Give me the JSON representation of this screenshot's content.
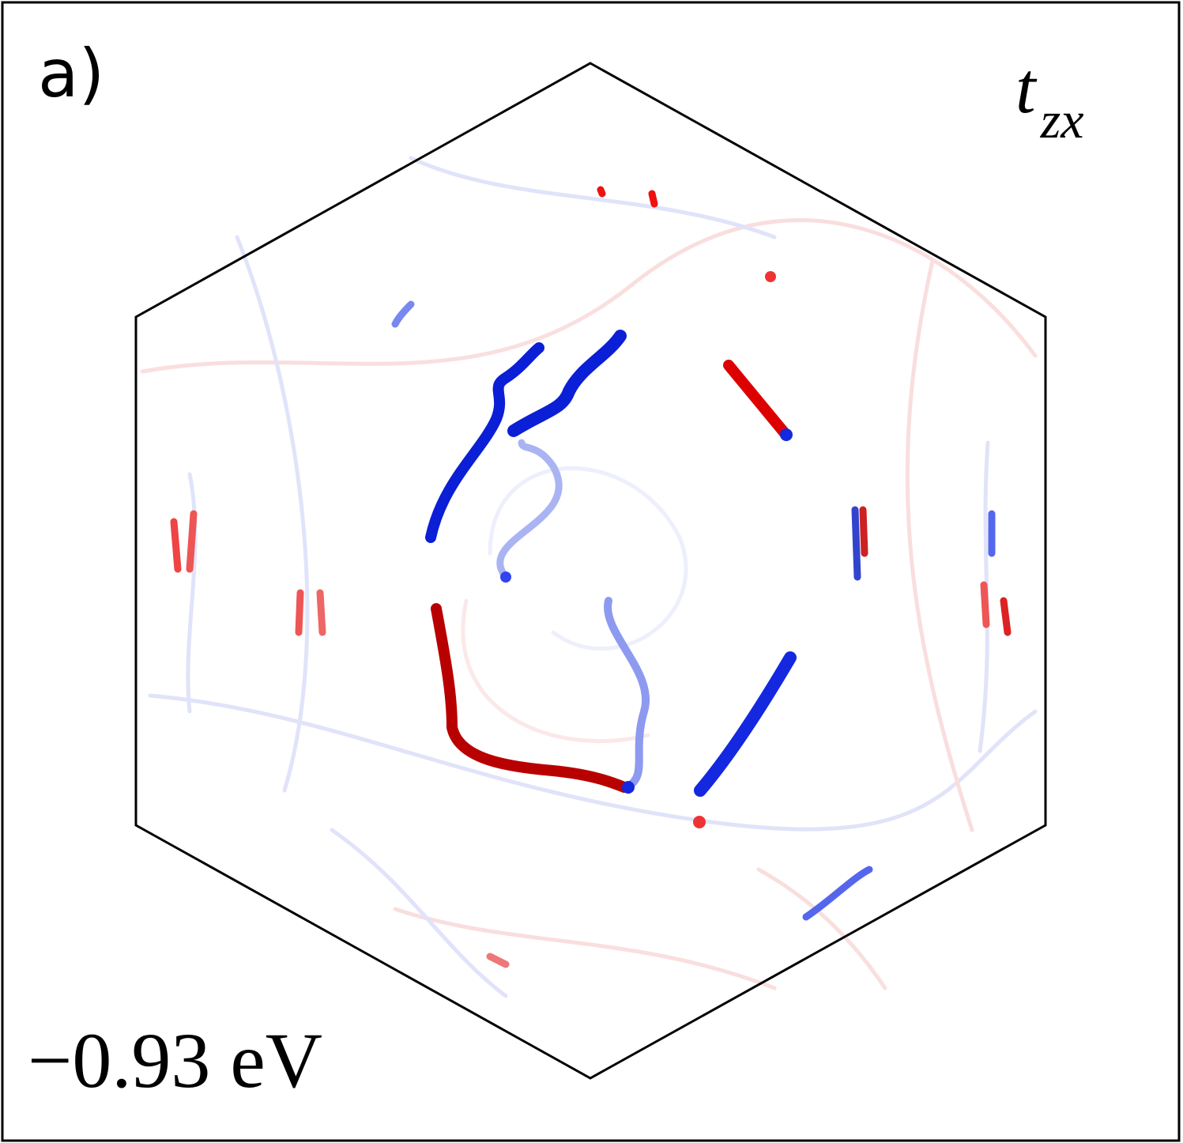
{
  "panel_label": "a)",
  "component": {
    "base": "t",
    "subscript": "zx"
  },
  "energy_label": "−0.93 eV"
}
